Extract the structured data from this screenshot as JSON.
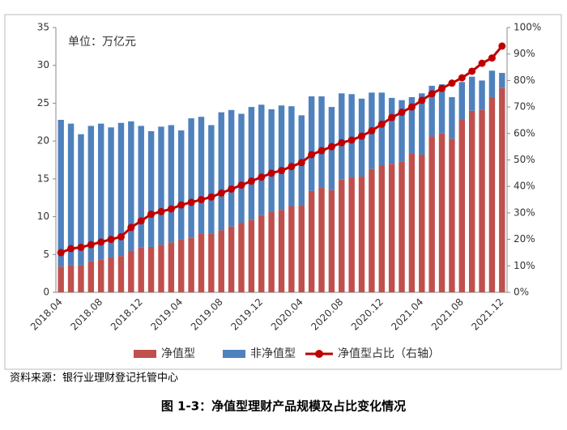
{
  "chart_data": {
    "type": "bar_line",
    "annotation": "单位：万亿元",
    "categories": [
      "2018.04",
      null,
      null,
      null,
      "2018.08",
      null,
      null,
      null,
      "2018.12",
      null,
      null,
      null,
      "2019.04",
      null,
      null,
      null,
      "2019.08",
      null,
      null,
      null,
      "2019.12",
      null,
      null,
      null,
      "2020.04",
      null,
      null,
      null,
      "2020.08",
      null,
      null,
      null,
      "2020.12",
      null,
      null,
      null,
      "2021.04",
      null,
      null,
      null,
      "2021.08",
      null,
      null,
      null,
      "2021.12"
    ],
    "series": [
      {
        "name": "净值型",
        "color": "#c0504d",
        "stack": true,
        "values": [
          3.4,
          3.6,
          3.6,
          4.1,
          4.3,
          4.6,
          4.8,
          5.5,
          5.9,
          6.0,
          6.3,
          6.6,
          7.0,
          7.2,
          7.8,
          7.8,
          8.2,
          8.7,
          9.2,
          9.6,
          10.2,
          10.6,
          10.9,
          11.4,
          11.5,
          13.4,
          13.8,
          13.5,
          14.9,
          15.2,
          15.3,
          16.3,
          16.8,
          17.0,
          17.3,
          18.3,
          18.2,
          20.6,
          21.0,
          20.3,
          22.8,
          24.0,
          24.1,
          25.8,
          27.0
        ]
      },
      {
        "name": "非净值型",
        "color": "#4f81bd",
        "stack": true,
        "values": [
          19.4,
          18.7,
          17.3,
          17.9,
          18.0,
          17.2,
          17.6,
          17.1,
          16.1,
          15.3,
          15.6,
          15.5,
          14.4,
          15.8,
          15.4,
          14.3,
          15.6,
          15.4,
          14.4,
          14.9,
          14.6,
          13.6,
          13.8,
          13.2,
          11.9,
          12.5,
          12.1,
          11.0,
          11.4,
          11.0,
          10.3,
          10.1,
          9.6,
          8.7,
          8.1,
          7.5,
          8.1,
          6.7,
          6.5,
          5.5,
          5.0,
          4.5,
          3.9,
          3.5,
          2.0
        ]
      },
      {
        "name": "净值型占比（右轴）",
        "color": "#c00000",
        "axis": "y2",
        "type": "line",
        "values": [
          15,
          16.5,
          17,
          18,
          19,
          20,
          21,
          24.5,
          27,
          29.5,
          30.5,
          31.5,
          33,
          34,
          35,
          36,
          37.5,
          39,
          40.5,
          42,
          43.5,
          45,
          46,
          47.5,
          49,
          52,
          53.5,
          55,
          56.5,
          57.5,
          59,
          61,
          63.5,
          66,
          68,
          70,
          72.5,
          75,
          77,
          79,
          81,
          83.5,
          86.5,
          88.5,
          93
        ]
      }
    ],
    "ylim": [
      0,
      35
    ],
    "yticks": [
      0,
      5,
      10,
      15,
      20,
      25,
      30,
      35
    ],
    "y2lim": [
      0,
      100
    ],
    "y2ticks": [
      {
        "value": 0,
        "label": "0%"
      },
      {
        "value": 10,
        "label": "10%"
      },
      {
        "value": 20,
        "label": "20%"
      },
      {
        "value": 30,
        "label": "30%"
      },
      {
        "value": 40,
        "label": "40%"
      },
      {
        "value": 50,
        "label": "50%"
      },
      {
        "value": 60,
        "label": "60%"
      },
      {
        "value": 70,
        "label": "70%"
      },
      {
        "value": 80,
        "label": "80%"
      },
      {
        "value": 90,
        "label": "90%"
      },
      {
        "value": 100,
        "label": "100%"
      }
    ],
    "legend": "bottom"
  },
  "source": "资料来源：银行业理财登记托管中心",
  "caption": "图 1-3：净值型理财产品规模及占比变化情况"
}
